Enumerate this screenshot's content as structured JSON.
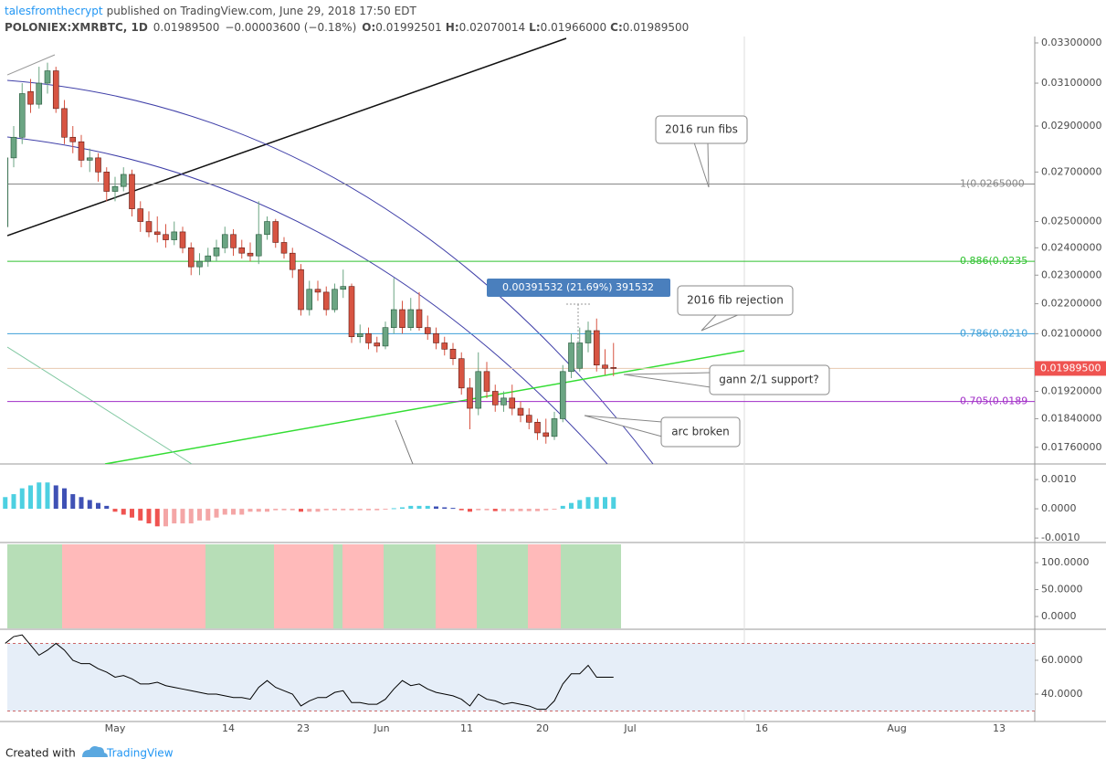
{
  "header": {
    "author": "talesfromthecrypt",
    "published": "published on TradingView.com, June 29, 2018 17:50 EDT",
    "symbol": "POLONIEX:XMRBTC, 1D",
    "last": "0.01989500",
    "change": "−0.00003600 (−0.18%)",
    "ohlc": [
      {
        "key": "O:",
        "value": "0.01992501"
      },
      {
        "key": "H:",
        "value": "0.02070014"
      },
      {
        "key": "L:",
        "value": "0.01966000"
      },
      {
        "key": "C:",
        "value": "0.01989500"
      }
    ]
  },
  "chart_data": [
    {
      "type": "candlestick",
      "log_scale": true,
      "ylim": [
        0.01715,
        0.03333
      ],
      "yticks": [
        {
          "value": 0.033,
          "label": "0.03300000"
        },
        {
          "value": 0.031,
          "label": "0.03100000"
        },
        {
          "value": 0.029,
          "label": "0.02900000"
        },
        {
          "value": 0.027,
          "label": "0.02700000"
        },
        {
          "value": 0.025,
          "label": "0.02500000"
        },
        {
          "value": 0.024,
          "label": "0.02400000"
        },
        {
          "value": 0.023,
          "label": "0.02300000"
        },
        {
          "value": 0.022,
          "label": "0.02200000"
        },
        {
          "value": 0.021,
          "label": "0.02100000"
        },
        {
          "value": 0.0192,
          "label": "0.01920000"
        },
        {
          "value": 0.0184,
          "label": "0.01840000"
        },
        {
          "value": 0.0176,
          "label": "0.01760000"
        }
      ],
      "colors": {
        "up": "#6ba583",
        "down": "#d75442"
      },
      "open": [
        0.0248,
        0.0276,
        0.0285,
        0.0306,
        0.03,
        0.031,
        0.0316,
        0.0298,
        0.0285,
        0.0283,
        0.0275,
        0.0276,
        0.027,
        0.0262,
        0.0264,
        0.0269,
        0.0255,
        0.025,
        0.0246,
        0.0245,
        0.0243,
        0.0246,
        0.024,
        0.0233,
        0.0235,
        0.0237,
        0.024,
        0.0245,
        0.024,
        0.0238,
        0.0237,
        0.0245,
        0.025,
        0.0242,
        0.0238,
        0.0232,
        0.0218,
        0.0225,
        0.0224,
        0.0218,
        0.0225,
        0.0226,
        0.0209,
        0.021,
        0.0207,
        0.0206,
        0.0212,
        0.0218,
        0.0212,
        0.0218,
        0.0212,
        0.021,
        0.0207,
        0.0205,
        0.0202,
        0.0193,
        0.0187,
        0.0198,
        0.0192,
        0.0188,
        0.019,
        0.0187,
        0.0185,
        0.0183,
        0.018,
        0.0179,
        0.0184,
        0.0198,
        0.0199,
        0.0207,
        0.0211,
        0.02,
        0.01992501
      ],
      "high": [
        0.0278,
        0.029,
        0.031,
        0.0312,
        0.0318,
        0.032,
        0.0318,
        0.0302,
        0.029,
        0.0286,
        0.028,
        0.0278,
        0.0272,
        0.0268,
        0.0272,
        0.0271,
        0.0258,
        0.0254,
        0.0252,
        0.0249,
        0.025,
        0.0248,
        0.0242,
        0.0238,
        0.024,
        0.0243,
        0.0248,
        0.0247,
        0.0243,
        0.0242,
        0.0258,
        0.0252,
        0.0251,
        0.0244,
        0.024,
        0.0234,
        0.0228,
        0.0228,
        0.0226,
        0.0227,
        0.0232,
        0.0227,
        0.0213,
        0.0212,
        0.0209,
        0.0214,
        0.0229,
        0.0221,
        0.0222,
        0.0224,
        0.0216,
        0.0212,
        0.0209,
        0.0207,
        0.0204,
        0.0196,
        0.0204,
        0.0201,
        0.0194,
        0.0192,
        0.0194,
        0.0189,
        0.0187,
        0.0184,
        0.0184,
        0.0186,
        0.02,
        0.021,
        0.0212,
        0.0214,
        0.0215,
        0.0205,
        0.02070014
      ],
      "low": [
        0.0245,
        0.0272,
        0.0282,
        0.0296,
        0.0298,
        0.0305,
        0.0296,
        0.0282,
        0.0278,
        0.0272,
        0.027,
        0.0266,
        0.0258,
        0.0258,
        0.0262,
        0.0252,
        0.0246,
        0.0244,
        0.0242,
        0.024,
        0.0241,
        0.0238,
        0.023,
        0.023,
        0.0233,
        0.0235,
        0.0238,
        0.0237,
        0.0236,
        0.0235,
        0.0234,
        0.0243,
        0.024,
        0.0236,
        0.0229,
        0.0216,
        0.0216,
        0.0221,
        0.0216,
        0.0217,
        0.0222,
        0.0207,
        0.0207,
        0.0205,
        0.0204,
        0.0205,
        0.021,
        0.021,
        0.0211,
        0.0211,
        0.0208,
        0.0205,
        0.0203,
        0.02,
        0.0191,
        0.0181,
        0.0185,
        0.019,
        0.0186,
        0.0186,
        0.0185,
        0.0183,
        0.0181,
        0.0178,
        0.0177,
        0.0178,
        0.0183,
        0.0196,
        0.0198,
        0.0204,
        0.0198,
        0.0197,
        0.01966
      ],
      "close": [
        0.0276,
        0.0285,
        0.0305,
        0.03,
        0.031,
        0.0316,
        0.0298,
        0.0285,
        0.0283,
        0.0275,
        0.0276,
        0.027,
        0.0262,
        0.0264,
        0.0269,
        0.0255,
        0.025,
        0.0246,
        0.0245,
        0.0243,
        0.0246,
        0.024,
        0.0233,
        0.0235,
        0.0237,
        0.024,
        0.0245,
        0.024,
        0.0238,
        0.0237,
        0.0245,
        0.025,
        0.0242,
        0.0238,
        0.0232,
        0.0218,
        0.0225,
        0.0224,
        0.0218,
        0.0225,
        0.0226,
        0.0209,
        0.021,
        0.0207,
        0.0206,
        0.0212,
        0.0218,
        0.0212,
        0.0218,
        0.0212,
        0.021,
        0.0207,
        0.0205,
        0.0202,
        0.0193,
        0.0187,
        0.0198,
        0.0192,
        0.0188,
        0.019,
        0.0187,
        0.0185,
        0.0183,
        0.018,
        0.0179,
        0.0184,
        0.0198,
        0.0207,
        0.0207,
        0.0211,
        0.02,
        0.0199,
        0.019895
      ],
      "last_price": {
        "value": 0.019895,
        "label": "0.01989500",
        "color": "#ef5350"
      },
      "fib_levels": [
        {
          "value": 0.0265,
          "label": "1(0.0265000",
          "color": "#888888"
        },
        {
          "value": 0.0235,
          "label": "0.886(0.0235",
          "color": "#2fc12f"
        },
        {
          "value": 0.021,
          "label": "0.786(0.0210",
          "color": "#3d9fd8"
        },
        {
          "value": 0.0189,
          "label": "0.705(0.0189",
          "color": "#a12dc7"
        }
      ],
      "measure": "0.00391532 (21.69%) 391532",
      "annotations": [
        "2016 run fibs",
        "2016 fib rejection",
        "gann 2/1 support?",
        "arc broken"
      ],
      "x_labels": [
        "May",
        "14",
        "23",
        "Jun",
        "11",
        "20",
        "Jul",
        "16",
        "Aug",
        "13"
      ]
    },
    {
      "type": "bar",
      "ylim": [
        -0.00109,
        0.00147
      ],
      "yticks": [
        {
          "value": 0.001,
          "label": "0.0010"
        },
        {
          "value": 0,
          "label": "0.0000"
        },
        {
          "value": -0.001,
          "label": "-0.0010"
        }
      ],
      "values": [
        0.0004,
        0.0005,
        0.0007,
        0.0008,
        0.0009,
        0.0009,
        0.0008,
        0.0007,
        0.0005,
        0.0004,
        0.0003,
        0.0002,
        0.0001,
        -0.0001,
        -0.0002,
        -0.0003,
        -0.0004,
        -0.0005,
        -0.0006,
        -0.0006,
        -0.0005,
        -0.0005,
        -0.0005,
        -0.0004,
        -0.0004,
        -0.0003,
        -0.0002,
        -0.0002,
        -0.0002,
        -0.0001,
        -0.0001,
        -0.0001,
        -5e-05,
        -5e-05,
        -5e-05,
        -0.0001,
        -0.0001,
        -0.0001,
        -5e-05,
        -5e-05,
        -5e-05,
        -5e-05,
        -5e-05,
        -5e-05,
        -5e-05,
        -3e-05,
        2e-05,
        5e-05,
        0.0001,
        0.0001,
        0.0001,
        8e-05,
        5e-05,
        3e-05,
        -5e-05,
        -0.0001,
        -5e-05,
        -5e-05,
        -8e-05,
        -8e-05,
        -8e-05,
        -8e-05,
        -8e-05,
        -8e-05,
        -5e-05,
        -3e-05,
        0.0001,
        0.0002,
        0.0003,
        0.0004,
        0.0004,
        0.0004,
        0.0004
      ],
      "colors": {
        "up_rising": "#4dd0e1",
        "up_falling": "#3f51b5",
        "down_falling": "#ef5350",
        "down_rising": "#f4a6a6"
      }
    },
    {
      "type": "bands",
      "ylim": [
        -22,
        134
      ],
      "yticks": [
        {
          "value": 100,
          "label": "100.0000"
        },
        {
          "value": 50,
          "label": "50.0000"
        },
        {
          "value": 0,
          "label": "0.0000"
        }
      ]
    },
    {
      "type": "line",
      "ylim": [
        23.8,
        77.8
      ],
      "yticks": [
        {
          "value": 60,
          "label": "60.0000"
        },
        {
          "value": 40,
          "label": "40.0000"
        }
      ],
      "bands": [
        30,
        70
      ],
      "color": "#000000",
      "values": [
        70,
        74,
        75,
        69,
        63,
        66,
        70,
        66,
        60,
        58,
        58,
        55,
        53,
        50,
        51,
        49,
        46,
        46,
        47,
        45,
        44,
        43,
        42,
        41,
        40,
        40,
        39,
        38,
        38,
        37,
        44,
        48,
        44,
        42,
        40,
        33,
        36,
        38,
        38,
        41,
        42,
        35,
        35,
        34,
        34,
        37,
        43,
        48,
        45,
        46,
        43,
        41,
        40,
        39,
        37,
        33,
        40,
        37,
        36,
        34,
        35,
        34,
        33,
        31,
        31,
        36,
        46,
        52,
        52,
        57,
        50,
        50,
        50
      ]
    }
  ],
  "footer": {
    "created": "Created with",
    "brand": "TradingView"
  }
}
